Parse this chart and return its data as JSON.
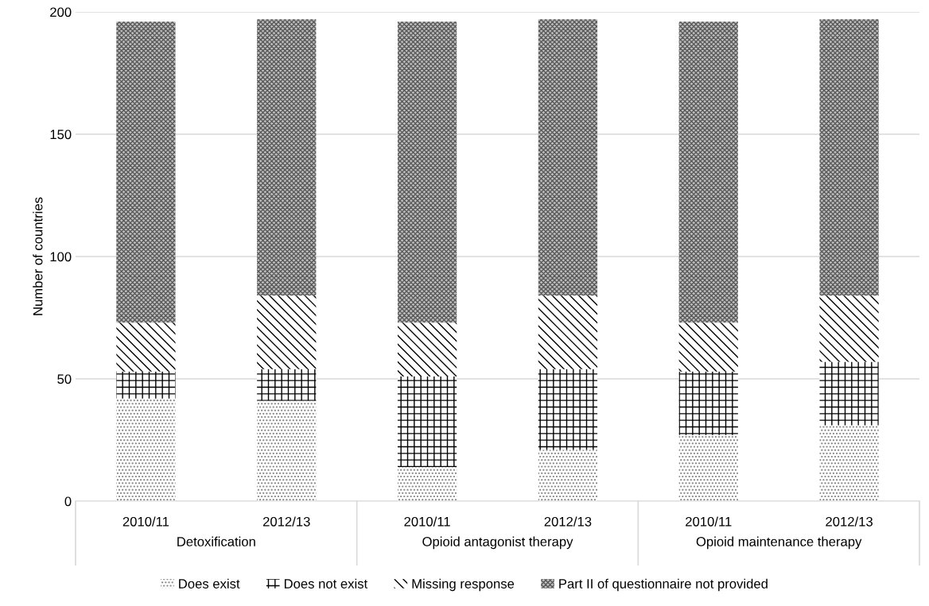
{
  "chart_data": {
    "type": "bar",
    "stacked": true,
    "ylabel": "Number of countries",
    "categories": [
      "2010/11",
      "2012/13",
      "2010/11",
      "2012/13",
      "2010/11",
      "2012/13"
    ],
    "annotations": [
      "Detoxification",
      "Opioid antagonist therapy",
      "Opioid maintenance therapy"
    ],
    "series": [
      {
        "name": "Does exist",
        "color": "#808080",
        "values": [
          42,
          41,
          14,
          21,
          27,
          31
        ]
      },
      {
        "name": "Does not exist",
        "color": "#000000",
        "values": [
          11,
          13,
          37,
          33,
          26,
          26
        ]
      },
      {
        "name": "Missing response",
        "color": "#000000",
        "values": [
          20,
          30,
          22,
          30,
          20,
          27
        ]
      },
      {
        "name": "Part II of questionnaire not provided",
        "color": "#595959",
        "values": [
          123,
          113,
          123,
          113,
          123,
          113
        ]
      }
    ],
    "ylim": [
      0,
      200
    ],
    "yticks": [
      0,
      50,
      100,
      150,
      200
    ],
    "grid": "y",
    "legend": "bottom"
  }
}
